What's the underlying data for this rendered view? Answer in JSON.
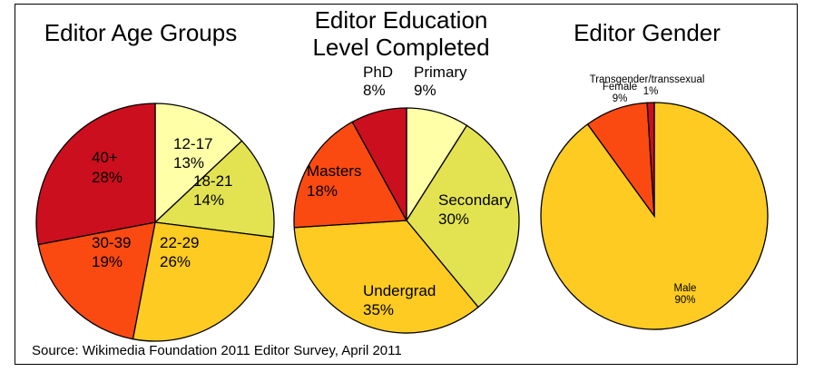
{
  "chart_data": [
    {
      "type": "pie",
      "title": "Editor Age Groups",
      "slices": [
        {
          "label": "12-17",
          "value": 13,
          "value_label": "13%",
          "color": "#FFFFA8"
        },
        {
          "label": "18-21",
          "value": 14,
          "value_label": "14%",
          "color": "#E3E352"
        },
        {
          "label": "22-29",
          "value": 26,
          "value_label": "26%",
          "color": "#FDCB21"
        },
        {
          "label": "30-39",
          "value": 19,
          "value_label": "19%",
          "color": "#FA4A12"
        },
        {
          "label": "40+",
          "value": 28,
          "value_label": "28%",
          "color": "#CB0F1E"
        }
      ]
    },
    {
      "type": "pie",
      "title": "Editor Education Level Completed",
      "title_lines": [
        "Editor Education",
        "Level Completed"
      ],
      "slices": [
        {
          "label": "Primary",
          "value": 9,
          "value_label": "9%",
          "color": "#FFFFA8"
        },
        {
          "label": "Secondary",
          "value": 30,
          "value_label": "30%",
          "color": "#E3E352"
        },
        {
          "label": "Undergrad",
          "value": 35,
          "value_label": "35%",
          "color": "#FDCB21"
        },
        {
          "label": "Masters",
          "value": 18,
          "value_label": "18%",
          "color": "#FA4A12"
        },
        {
          "label": "PhD",
          "value": 8,
          "value_label": "8%",
          "color": "#CB0F1E"
        }
      ]
    },
    {
      "type": "pie",
      "title": "Editor Gender",
      "slices": [
        {
          "label": "Male",
          "value": 90,
          "value_label": "90%",
          "color": "#FDCB21"
        },
        {
          "label": "Female",
          "value": 9,
          "value_label": "9%",
          "color": "#FA4A12"
        },
        {
          "label": "Transgender/transsexual",
          "value": 1,
          "value_label": "1%",
          "color": "#CB0F1E"
        }
      ]
    }
  ],
  "source": "Source: Wikimedia Foundation 2011 Editor Survey, April 2011"
}
